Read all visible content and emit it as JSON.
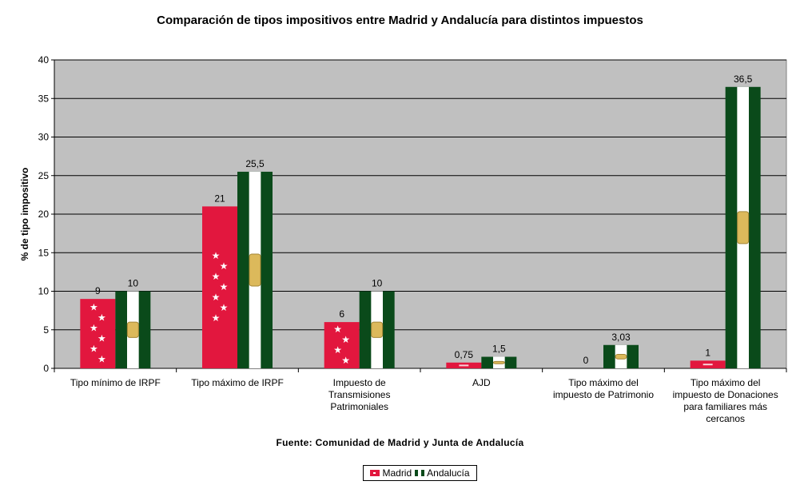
{
  "chart_data": {
    "type": "bar",
    "title": "Comparación de tipos impositivos entre Madrid y Andalucía para distintos impuestos",
    "xlabel": "",
    "ylabel": "% de tipo impositivo",
    "ylim": [
      0,
      40
    ],
    "yticks": [
      0,
      5,
      10,
      15,
      20,
      25,
      30,
      35,
      40
    ],
    "grid": true,
    "legend_position": "bottom",
    "categories": [
      [
        "Tipo mínimo de IRPF"
      ],
      [
        "Tipo máximo de IRPF"
      ],
      [
        "Impuesto de",
        "Transmisiones",
        "Patrimoniales"
      ],
      [
        "AJD"
      ],
      [
        "Tipo máximo del",
        "impuesto de Patrimonio"
      ],
      [
        "Tipo máximo del",
        "impuesto de Donaciones",
        "para familiares más",
        "cercanos"
      ]
    ],
    "series": [
      {
        "name": "Madrid",
        "color": "#e2173e",
        "values": [
          9,
          21,
          6,
          0.75,
          0,
          1
        ],
        "labels": [
          "9",
          "21",
          "6",
          "0,75",
          "0",
          "1"
        ]
      },
      {
        "name": "Andalucía",
        "color": "#0a4a1a",
        "values": [
          10,
          25.5,
          10,
          1.5,
          3.03,
          36.5
        ],
        "labels": [
          "10",
          "25,5",
          "10",
          "1,5",
          "3,03",
          "36,5"
        ]
      }
    ],
    "source": "Fuente: Comunidad de Madrid y Junta de Andalucía"
  }
}
